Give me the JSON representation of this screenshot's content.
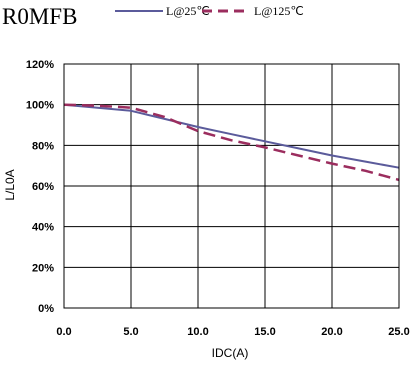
{
  "chart_data": {
    "type": "line",
    "title": "R0MFB",
    "xlabel": "IDC(A)",
    "ylabel": "L/L0A",
    "xlim": [
      0,
      25
    ],
    "ylim": [
      0,
      120
    ],
    "x_ticks": [
      "0.0",
      "5.0",
      "10.0",
      "15.0",
      "20.0",
      "25.0"
    ],
    "y_ticks": [
      "0%",
      "20%",
      "40%",
      "60%",
      "80%",
      "100%",
      "120%"
    ],
    "grid": true,
    "legend": "top",
    "series": [
      {
        "name": "L@25℃",
        "color": "#5b5b9b",
        "style": "solid",
        "x": [
          0,
          2.5,
          5,
          7.5,
          10,
          12.5,
          15,
          17.5,
          20,
          22.5,
          25
        ],
        "y": [
          100,
          98.5,
          97,
          93,
          89,
          85.5,
          82,
          78.5,
          75,
          72,
          69
        ]
      },
      {
        "name": "L@125℃",
        "color": "#9b2d5e",
        "style": "dashed",
        "x": [
          0,
          2.5,
          5,
          7.5,
          10,
          12.5,
          15,
          17.5,
          20,
          22.5,
          25
        ],
        "y": [
          100,
          99.5,
          98.5,
          94,
          87,
          82.5,
          79,
          75,
          71,
          67.5,
          63
        ]
      }
    ]
  }
}
